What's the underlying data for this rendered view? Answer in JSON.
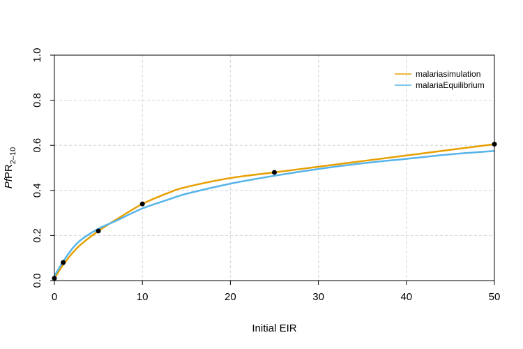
{
  "chart_data": {
    "type": "line",
    "title": "",
    "xlabel": "Initial EIR",
    "ylabel": {
      "italic": "Pf",
      "main": "PR",
      "subscript": "2–10"
    },
    "xlim": [
      0,
      50
    ],
    "ylim": [
      0,
      1
    ],
    "x_ticks": [
      0,
      10,
      20,
      30,
      40,
      50
    ],
    "y_ticks": [
      0.0,
      0.2,
      0.4,
      0.6,
      0.8,
      1.0
    ],
    "x_tick_labels": [
      "0",
      "10",
      "20",
      "30",
      "40",
      "50"
    ],
    "y_tick_labels": [
      "0.0",
      "0.2",
      "0.4",
      "0.6",
      "0.8",
      "1.0"
    ],
    "grid": true,
    "legend_position": "top-right",
    "series": [
      {
        "name": "malariasimulation",
        "color": "#E69F00",
        "x": [
          0,
          1,
          2,
          3,
          5,
          7,
          10,
          13,
          15,
          20,
          25,
          30,
          35,
          40,
          45,
          50
        ],
        "y": [
          0.01,
          0.07,
          0.12,
          0.16,
          0.22,
          0.27,
          0.34,
          0.39,
          0.415,
          0.455,
          0.48,
          0.505,
          0.53,
          0.555,
          0.58,
          0.605
        ]
      },
      {
        "name": "malariaEquilibrium",
        "color": "#56B4E9",
        "x": [
          0,
          1,
          2,
          3,
          5,
          7,
          10,
          13,
          15,
          20,
          25,
          30,
          35,
          40,
          45,
          50
        ],
        "y": [
          0.02,
          0.085,
          0.14,
          0.18,
          0.23,
          0.265,
          0.32,
          0.36,
          0.385,
          0.43,
          0.465,
          0.495,
          0.52,
          0.54,
          0.56,
          0.575
        ]
      }
    ],
    "points": {
      "color": "#000000",
      "x": [
        0,
        1,
        5,
        10,
        25,
        50
      ],
      "y": [
        0.01,
        0.08,
        0.22,
        0.34,
        0.48,
        0.605
      ]
    }
  }
}
